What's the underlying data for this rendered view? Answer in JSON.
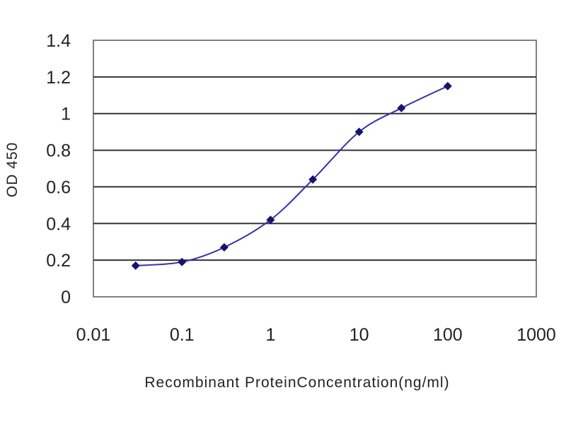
{
  "chart_data": {
    "type": "line",
    "title": "",
    "xlabel": "Recombinant ProteinConcentration(ng/ml)",
    "ylabel": "OD 450",
    "xscale": "log",
    "xlim": [
      0.01,
      1000
    ],
    "ylim": [
      0,
      1.4
    ],
    "x_ticks": [
      "0.01",
      "0.1",
      "1",
      "10",
      "100",
      "1000"
    ],
    "y_ticks": [
      "0",
      "0.2",
      "0.4",
      "0.6",
      "0.8",
      "1",
      "1.2",
      "1.4"
    ],
    "grid": "horizontal",
    "legend": "none",
    "plot_background": "#ffffff",
    "line_color": "#3333aa",
    "marker_color": "#14146e",
    "series": [
      {
        "x": [
          0.03,
          0.1,
          0.3,
          1,
          3,
          10,
          30,
          100
        ],
        "y": [
          0.17,
          0.19,
          0.27,
          0.42,
          0.64,
          0.9,
          1.03,
          1.15
        ]
      }
    ]
  }
}
